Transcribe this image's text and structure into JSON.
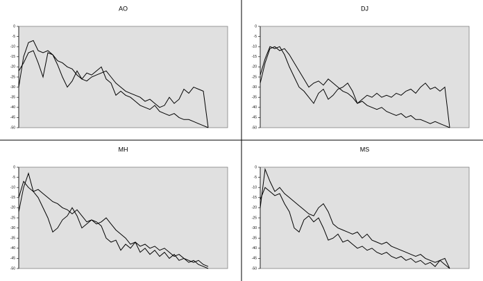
{
  "chart_data": [
    {
      "type": "line",
      "title": "AO",
      "ylim": [
        -50,
        0
      ],
      "yticks": [
        0,
        -5,
        -10,
        -15,
        -20,
        -25,
        -30,
        -35,
        -40,
        -45,
        -50
      ],
      "grid": false,
      "series": [
        {
          "color": "#000000",
          "values": [
            -30,
            -15,
            -8,
            -7,
            -12,
            -13,
            -12,
            -14,
            -17,
            -18,
            -20,
            -21,
            -24,
            -26,
            -27,
            -25,
            -24,
            -23,
            -22,
            -25,
            -28,
            -30,
            -32,
            -33,
            -34,
            -35,
            -37,
            -36,
            -38,
            -40,
            -39,
            -35,
            -38,
            -36,
            -31,
            -33,
            -30,
            -31,
            -32,
            -50
          ]
        },
        {
          "color": "#000000",
          "values": [
            -22,
            -18,
            -13,
            -12,
            -18,
            -25,
            -13,
            -14,
            -19,
            -25,
            -30,
            -27,
            -22,
            -26,
            -23,
            -24,
            -22,
            -20,
            -26,
            -28,
            -34,
            -32,
            -34,
            -35,
            -37,
            -39,
            -40,
            -41,
            -39,
            -42,
            -43,
            -44,
            -43,
            -45,
            -46,
            -46,
            -47,
            -48,
            -49,
            -50
          ]
        }
      ]
    },
    {
      "type": "line",
      "title": "DJ",
      "ylim": [
        -50,
        0
      ],
      "yticks": [
        0,
        -5,
        -10,
        -15,
        -20,
        -25,
        -30,
        -35,
        -40,
        -45,
        -50
      ],
      "grid": false,
      "series": [
        {
          "color": "#000000",
          "values": [
            -28,
            -18,
            -11,
            -10,
            -12,
            -11,
            -14,
            -18,
            -22,
            -26,
            -30,
            -28,
            -27,
            -29,
            -26,
            -28,
            -30,
            -32,
            -33,
            -35,
            -38,
            -36,
            -34,
            -35,
            -33,
            -35,
            -34,
            -35,
            -33,
            -34,
            -32,
            -31,
            -33,
            -30,
            -28,
            -31,
            -30,
            -32,
            -30,
            -50
          ]
        },
        {
          "color": "#000000",
          "values": [
            -24,
            -16,
            -10,
            -11,
            -10,
            -14,
            -20,
            -25,
            -30,
            -32,
            -35,
            -38,
            -33,
            -31,
            -36,
            -34,
            -31,
            -30,
            -28,
            -32,
            -38,
            -37,
            -39,
            -40,
            -41,
            -40,
            -42,
            -43,
            -44,
            -43,
            -45,
            -44,
            -46,
            -46,
            -47,
            -48,
            -47,
            -48,
            -49,
            -50
          ]
        }
      ]
    },
    {
      "type": "line",
      "title": "MH",
      "ylim": [
        -50,
        0
      ],
      "yticks": [
        0,
        -5,
        -10,
        -15,
        -20,
        -25,
        -30,
        -35,
        -40,
        -45,
        -50
      ],
      "grid": false,
      "series": [
        {
          "color": "#000000",
          "values": [
            -15,
            -7,
            -10,
            -12,
            -11,
            -13,
            -15,
            -17,
            -18,
            -20,
            -21,
            -23,
            -21,
            -24,
            -27,
            -26,
            -28,
            -27,
            -25,
            -28,
            -31,
            -33,
            -35,
            -38,
            -37,
            -39,
            -38,
            -40,
            -39,
            -41,
            -40,
            -42,
            -44,
            -43,
            -45,
            -46,
            -47,
            -46,
            -48,
            -49
          ]
        },
        {
          "color": "#000000",
          "values": [
            -22,
            -10,
            -3,
            -12,
            -15,
            -20,
            -25,
            -32,
            -30,
            -26,
            -24,
            -20,
            -24,
            -30,
            -28,
            -26,
            -27,
            -29,
            -35,
            -37,
            -36,
            -41,
            -38,
            -40,
            -37,
            -42,
            -40,
            -43,
            -41,
            -44,
            -42,
            -45,
            -43,
            -46,
            -45,
            -47,
            -46,
            -48,
            -49,
            -50
          ]
        }
      ]
    },
    {
      "type": "line",
      "title": "MS",
      "ylim": [
        -50,
        0
      ],
      "yticks": [
        0,
        -5,
        -10,
        -15,
        -20,
        -25,
        -30,
        -35,
        -40,
        -45,
        -50
      ],
      "grid": false,
      "series": [
        {
          "color": "#000000",
          "values": [
            -20,
            -1,
            -7,
            -12,
            -10,
            -13,
            -15,
            -17,
            -19,
            -21,
            -23,
            -24,
            -20,
            -18,
            -22,
            -28,
            -30,
            -31,
            -32,
            -33,
            -32,
            -35,
            -33,
            -36,
            -37,
            -38,
            -37,
            -39,
            -40,
            -41,
            -42,
            -43,
            -44,
            -43,
            -45,
            -46,
            -47,
            -46,
            -48,
            -50
          ]
        },
        {
          "color": "#000000",
          "values": [
            -16,
            -10,
            -12,
            -14,
            -13,
            -18,
            -22,
            -30,
            -32,
            -26,
            -24,
            -27,
            -25,
            -30,
            -36,
            -35,
            -33,
            -37,
            -36,
            -38,
            -40,
            -39,
            -41,
            -40,
            -42,
            -43,
            -42,
            -44,
            -45,
            -44,
            -46,
            -45,
            -47,
            -46,
            -48,
            -47,
            -49,
            -46,
            -45,
            -50
          ]
        }
      ]
    }
  ]
}
